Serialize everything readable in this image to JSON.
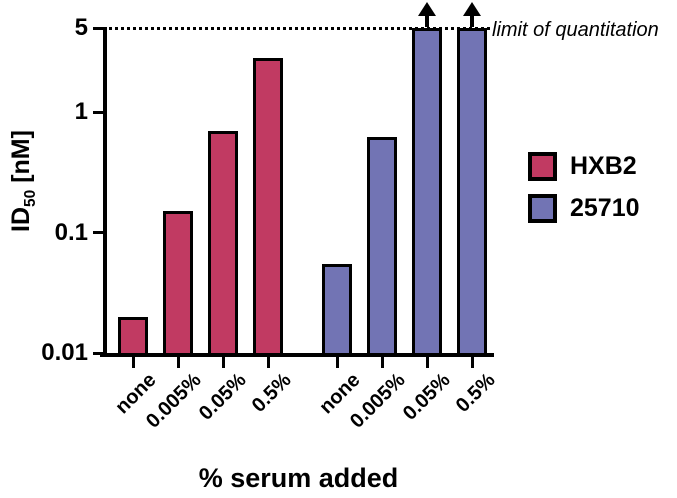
{
  "y_axis": {
    "label_prefix": "ID",
    "label_subscript": "50",
    "label_suffix": " [nM]",
    "scale": "log",
    "ticks": [
      "5",
      "1",
      "0.1",
      "0.01"
    ],
    "tick_values": [
      5,
      1,
      0.1,
      0.01
    ]
  },
  "x_axis": {
    "title": "% serum added"
  },
  "limit_line": {
    "label": "limit of quantitation",
    "value": 5
  },
  "legend": [
    {
      "label": "HXB2",
      "color": "#C13A62"
    },
    {
      "label": "25710",
      "color": "#7274B4"
    }
  ],
  "chart_data": {
    "type": "bar",
    "title": "",
    "xlabel": "% serum added",
    "ylabel": "ID50 [nM]",
    "yscale": "log",
    "ylim": [
      0.01,
      5
    ],
    "yticks": [
      5,
      1,
      0.1,
      0.01
    ],
    "categories": [
      "none",
      "0.005%",
      "0.05%",
      "0.5%"
    ],
    "series": [
      {
        "name": "HXB2",
        "color": "#C13A62",
        "values": [
          0.02,
          0.15,
          0.7,
          2.8
        ],
        "exceeds_limit": [
          false,
          false,
          false,
          false
        ]
      },
      {
        "name": "25710",
        "color": "#7274B4",
        "values": [
          0.055,
          0.62,
          5,
          5
        ],
        "exceeds_limit": [
          false,
          false,
          true,
          true
        ]
      }
    ],
    "annotations": [
      {
        "text": "limit of quantitation",
        "style": "italic",
        "y": 5,
        "line": "dotted"
      }
    ],
    "legend_position": "right",
    "grid": false
  }
}
